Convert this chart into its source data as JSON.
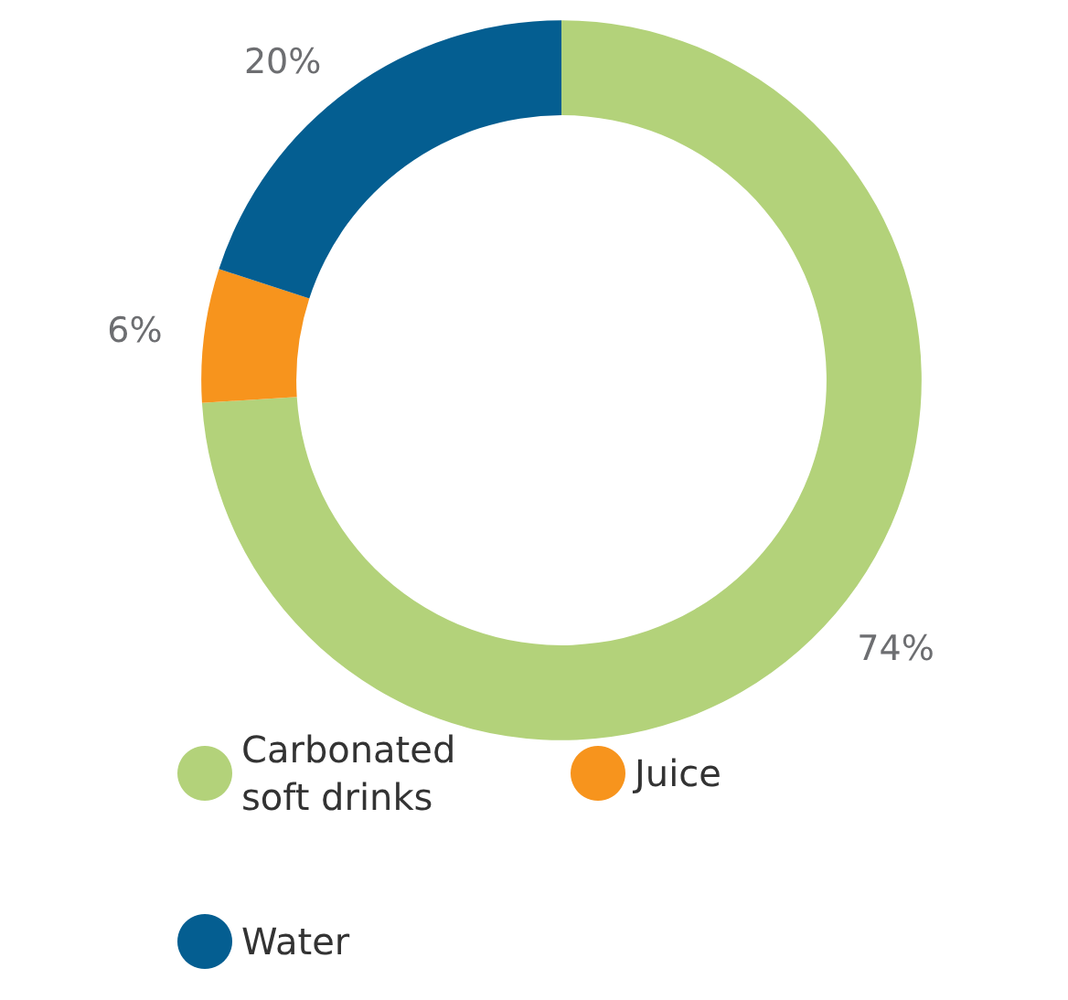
{
  "chart_data": {
    "type": "donut",
    "categories": [
      "Carbonated soft drinks",
      "Juice",
      "Water"
    ],
    "values": [
      74,
      6,
      20
    ],
    "colors": [
      "#b3d27a",
      "#f7941d",
      "#045e91"
    ],
    "value_labels": [
      "74%",
      "6%",
      "20%"
    ],
    "legend": "bottom"
  }
}
